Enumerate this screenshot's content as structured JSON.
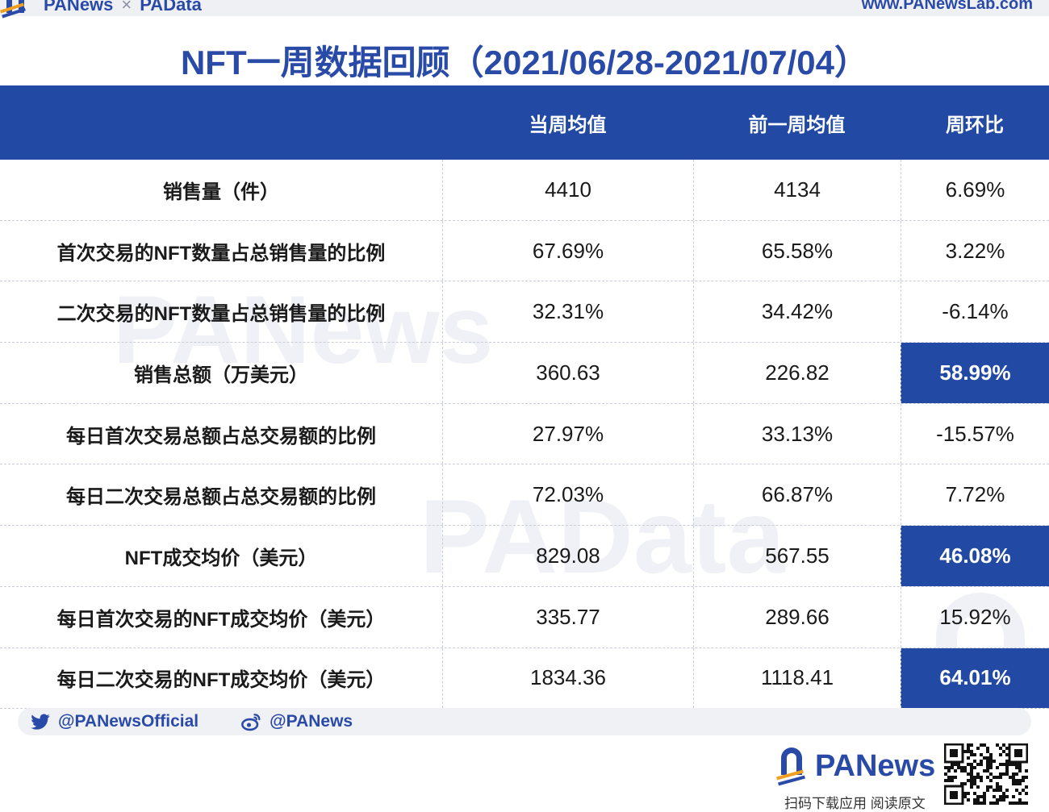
{
  "header": {
    "brand_left": "PANews",
    "brand_separator": "×",
    "brand_right": "PAData",
    "site_url": "www.PANewsLab.com"
  },
  "title": "NFT一周数据回顾（2021/06/28-2021/07/04）",
  "table": {
    "columns": [
      "",
      "当周均值",
      "前一周均值",
      "周环比"
    ],
    "rows": [
      {
        "label": "销售量（件）",
        "current": "4410",
        "previous": "4134",
        "change": "6.69%",
        "highlight": false
      },
      {
        "label": "首次交易的NFT数量占总销售量的比例",
        "current": "67.69%",
        "previous": "65.58%",
        "change": "3.22%",
        "highlight": false
      },
      {
        "label": "二次交易的NFT数量占总销售量的比例",
        "current": "32.31%",
        "previous": "34.42%",
        "change": "-6.14%",
        "highlight": false
      },
      {
        "label": "销售总额（万美元）",
        "current": "360.63",
        "previous": "226.82",
        "change": "58.99%",
        "highlight": true
      },
      {
        "label": "每日首次交易总额占总交易额的比例",
        "current": "27.97%",
        "previous": "33.13%",
        "change": "-15.57%",
        "highlight": false
      },
      {
        "label": "每日二次交易总额占总交易额的比例",
        "current": "72.03%",
        "previous": "66.87%",
        "change": "7.72%",
        "highlight": false
      },
      {
        "label": "NFT成交均价（美元）",
        "current": "829.08",
        "previous": "567.55",
        "change": "46.08%",
        "highlight": true
      },
      {
        "label": "每日首次交易的NFT成交均价（美元）",
        "current": "335.77",
        "previous": "289.66",
        "change": "15.92%",
        "highlight": false
      },
      {
        "label": "每日二次交易的NFT成交均价（美元）",
        "current": "1834.36",
        "previous": "1118.41",
        "change": "64.01%",
        "highlight": true
      }
    ]
  },
  "watermarks": [
    "PANews",
    "PAData"
  ],
  "social": {
    "twitter_handle": "@PANewsOfficial",
    "weibo_handle": "@PANews",
    "twitter_icon": "twitter-icon",
    "weibo_icon": "weibo-icon"
  },
  "footer": {
    "brand": "PANews",
    "caption": "扫码下载应用  阅读原文",
    "qr_icon": "qr-code-icon"
  },
  "colors": {
    "brand_blue": "#2249a3",
    "accent_orange": "#f0a020",
    "highlight_bg": "#2249a3"
  }
}
